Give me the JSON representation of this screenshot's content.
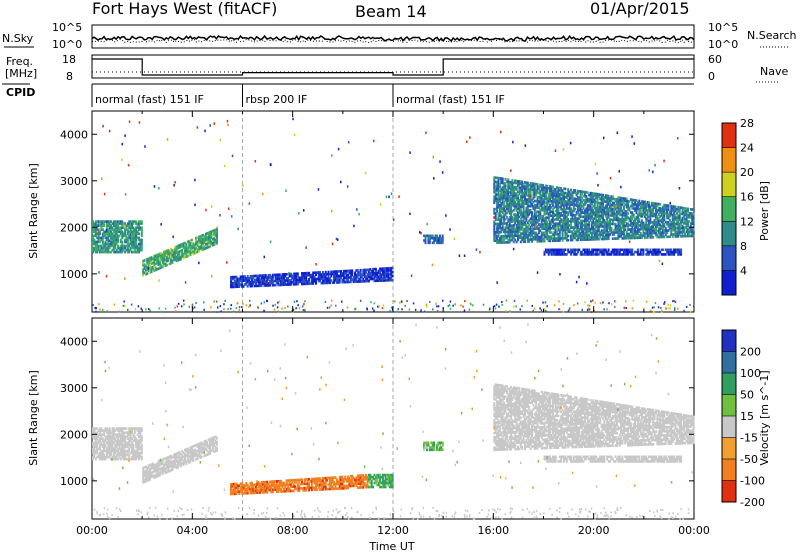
{
  "header": {
    "station": "Fort Hays West (fitACF)",
    "beam": "Beam 14",
    "date": "01/Apr/2015"
  },
  "noise_panel": {
    "left_label": "N.Sky",
    "left_ticks": [
      "10^5",
      "10^0"
    ],
    "right_label": "N.Search",
    "right_ticks": [
      "10^5",
      "10^0"
    ]
  },
  "freq_panel": {
    "left_label_1": "Freq.",
    "left_label_2": "[MHz]",
    "left_ticks": [
      "18",
      "8"
    ],
    "right_label": "Nave",
    "right_ticks": [
      "60",
      "0"
    ],
    "freq_mhz_segments": [
      {
        "t_start": 0,
        "t_end": 2,
        "freq": 18
      },
      {
        "t_start": 2,
        "t_end": 6,
        "freq": 8
      },
      {
        "t_start": 6,
        "t_end": 12,
        "freq": 9.5
      },
      {
        "t_start": 12,
        "t_end": 14,
        "freq": 8
      },
      {
        "t_start": 14,
        "t_end": 24,
        "freq": 18
      }
    ]
  },
  "cpid_panel": {
    "label": "CPID",
    "segments": [
      {
        "t_start": 0,
        "t_end": 6,
        "text": "normal (fast) 151 IF"
      },
      {
        "t_start": 6,
        "t_end": 12,
        "text": "rbsp 200 IF"
      },
      {
        "t_start": 12,
        "t_end": 24,
        "text": "normal (fast) 151 IF"
      }
    ]
  },
  "chart_data": [
    {
      "type": "heatmap",
      "title": "",
      "ylabel": "Slant Range [km]",
      "xlabel": "",
      "xlim": [
        0,
        24
      ],
      "ylim": [
        180,
        4500
      ],
      "yticks": [
        "1000",
        "2000",
        "3000",
        "4000"
      ],
      "colorbar": {
        "label": "Power [dB]",
        "ticks": [
          "4",
          "8",
          "12",
          "16",
          "20",
          "24",
          "28"
        ],
        "range": [
          0,
          30
        ],
        "colors": [
          "#1020d0",
          "#2a55c0",
          "#2f8a8a",
          "#40b060",
          "#d0d020",
          "#f09010",
          "#e03010"
        ]
      },
      "regions": [
        {
          "t0": 0.0,
          "t1": 2.0,
          "r0": 1450,
          "r1": 2150,
          "level": 12
        },
        {
          "t0": 2.0,
          "t1": 5.0,
          "r0": 950,
          "r1": 1300,
          "level": 14,
          "r0_end": 1650,
          "r1_end": 2000
        },
        {
          "t0": 5.5,
          "t1": 12.0,
          "r0": 700,
          "r1": 950,
          "level": 4,
          "r0_end": 850,
          "r1_end": 1150
        },
        {
          "t0": 13.2,
          "t1": 14.0,
          "r0": 1650,
          "r1": 1850,
          "level": 8
        },
        {
          "t0": 16.0,
          "t1": 24.0,
          "r0": 1650,
          "r1": 3100,
          "level": 10,
          "r0_end": 1800,
          "r1_end": 2400
        },
        {
          "t0": 18.0,
          "t1": 23.5,
          "r0": 1400,
          "r1": 1550,
          "level": 4
        }
      ]
    },
    {
      "type": "heatmap",
      "title": "",
      "ylabel": "Slant Range [km]",
      "xlabel": "Time UT",
      "xlim": [
        0,
        24
      ],
      "ylim": [
        180,
        4500
      ],
      "xticks": [
        "00:00",
        "04:00",
        "08:00",
        "12:00",
        "16:00",
        "20:00",
        "00:00"
      ],
      "yticks": [
        "1000",
        "2000",
        "3000",
        "4000"
      ],
      "colorbar": {
        "label": "Velocity [m s^-1]",
        "ticks": [
          "200",
          "100",
          "50",
          "15",
          "-15",
          "-50",
          "-100",
          "-200"
        ],
        "range": [
          -250,
          250
        ],
        "colors": [
          "#2030c0",
          "#3070a0",
          "#30a060",
          "#70c040",
          "#c8c8c8",
          "#f0a030",
          "#f08020",
          "#e03010"
        ]
      },
      "regions": [
        {
          "t0": 0.0,
          "t1": 2.0,
          "r0": 1450,
          "r1": 2150,
          "level": 0
        },
        {
          "t0": 2.0,
          "t1": 5.0,
          "r0": 950,
          "r1": 1300,
          "level": 0,
          "r0_end": 1650,
          "r1_end": 2000
        },
        {
          "t0": 5.5,
          "t1": 11.0,
          "r0": 700,
          "r1": 950,
          "level": -60,
          "r0_end": 850,
          "r1_end": 1150
        },
        {
          "t0": 11.0,
          "t1": 12.0,
          "r0": 850,
          "r1": 1150,
          "level": 40
        },
        {
          "t0": 13.2,
          "t1": 14.0,
          "r0": 1650,
          "r1": 1850,
          "level": 30
        },
        {
          "t0": 16.0,
          "t1": 24.0,
          "r0": 1650,
          "r1": 3100,
          "level": 0,
          "r0_end": 1800,
          "r1_end": 2400
        },
        {
          "t0": 18.0,
          "t1": 23.5,
          "r0": 1400,
          "r1": 1550,
          "level": 0
        }
      ]
    }
  ]
}
